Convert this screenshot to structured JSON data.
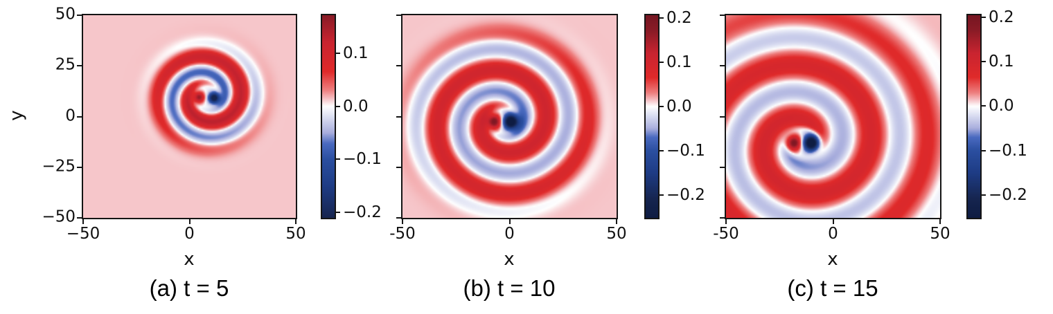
{
  "figure": {
    "background": "#ffffff",
    "spine_color": "#141414",
    "text_color": "#111111"
  },
  "colormap": {
    "name": "diverging-red-white-blue",
    "stops": [
      [
        -0.26,
        "#0c1a40"
      ],
      [
        -0.21,
        "#16254f"
      ],
      [
        -0.15,
        "#1e3c85"
      ],
      [
        -0.1,
        "#2b4fa0"
      ],
      [
        -0.07,
        "#4a6ac0"
      ],
      [
        -0.05,
        "#a9aedd"
      ],
      [
        -0.02,
        "#dcdff2"
      ],
      [
        0.0,
        "#ffffff"
      ],
      [
        0.013,
        "#f6c6ca"
      ],
      [
        0.03,
        "#ee8080"
      ],
      [
        0.065,
        "#e02a2a"
      ],
      [
        0.12,
        "#c92430"
      ],
      [
        0.17,
        "#8a1b26"
      ],
      [
        0.22,
        "#6e1420"
      ]
    ]
  },
  "chart_data": [
    {
      "type": "heatmap",
      "caption": "(a) t = 5",
      "time": 5,
      "xlabel": "x",
      "ylabel": "y",
      "xlim": [
        -50,
        50
      ],
      "ylim": [
        -50,
        50
      ],
      "grid": false,
      "xticks": [
        {
          "value": -50,
          "label": "−50"
        },
        {
          "value": 0,
          "label": "0"
        },
        {
          "value": 50,
          "label": "50"
        }
      ],
      "yticks": [
        {
          "value": 50,
          "label": "50"
        },
        {
          "value": 25,
          "label": "25"
        },
        {
          "value": 0,
          "label": "0"
        },
        {
          "value": -25,
          "label": "−25"
        },
        {
          "value": -50,
          "label": "−50"
        }
      ],
      "colorbar": {
        "vmin": -0.21,
        "vmax": 0.171,
        "ticks": [
          {
            "value": 0.1,
            "label": "0.1"
          },
          {
            "value": 0.0,
            "label": "0.0"
          },
          {
            "value": -0.1,
            "label": "−0.1"
          },
          {
            "value": -0.2,
            "label": "−0.2"
          }
        ]
      },
      "field": {
        "background_value": 0.013,
        "spiral_center": [
          8,
          9.7
        ],
        "wavenumber": 0.39,
        "phase": 0.0,
        "amplitude": 0.115,
        "wave_bias": 0.16,
        "ramp_start": 4.5,
        "ramp_width": 5,
        "front_radius": 25,
        "front_width": 4.5,
        "halo_amp": -0.025,
        "halo_sigma": 6,
        "dipole": {
          "red_pos": [
            4.6,
            9.5
          ],
          "red_amp": 0.17,
          "blue_pos": [
            11.6,
            9.2
          ],
          "blue_amp": -0.24,
          "sigma": 1.9
        }
      }
    },
    {
      "type": "heatmap",
      "caption": "(b) t = 10",
      "time": 10,
      "xlabel": "x",
      "ylabel": "",
      "xlim": [
        -50,
        50
      ],
      "ylim": [
        -50,
        50
      ],
      "grid": false,
      "xticks": [
        {
          "value": -50,
          "label": "-50"
        },
        {
          "value": 0,
          "label": "0"
        },
        {
          "value": 50,
          "label": "50"
        }
      ],
      "yticks": [
        {
          "value": 50,
          "label": ""
        },
        {
          "value": 25,
          "label": ""
        },
        {
          "value": 0,
          "label": ""
        },
        {
          "value": -25,
          "label": ""
        },
        {
          "value": -50,
          "label": ""
        }
      ],
      "colorbar": {
        "vmin": -0.252,
        "vmax": 0.206,
        "ticks": [
          {
            "value": 0.2,
            "label": "0.2"
          },
          {
            "value": 0.1,
            "label": "0.1"
          },
          {
            "value": 0.0,
            "label": "0.0"
          },
          {
            "value": -0.1,
            "label": "−0.1"
          },
          {
            "value": -0.2,
            "label": "−0.2"
          }
        ]
      },
      "field": {
        "background_value": 0.013,
        "spiral_center": [
          -3.2,
          -2.5
        ],
        "wavenumber": 0.3,
        "phase": -0.25,
        "amplitude": 0.095,
        "wave_bias": 0.18,
        "ramp_start": 5,
        "ramp_width": 5,
        "front_radius": 44,
        "front_width": 6,
        "halo_amp": -0.03,
        "halo_sigma": 8,
        "dipole": {
          "red_pos": [
            -7,
            -2.5
          ],
          "red_amp": 0.21,
          "blue_pos": [
            0.6,
            -2.5
          ],
          "blue_amp": -0.3,
          "sigma": 2.6
        }
      }
    },
    {
      "type": "heatmap",
      "caption": "(c) t = 15",
      "time": 15,
      "xlabel": "x",
      "ylabel": "",
      "xlim": [
        -50,
        50
      ],
      "ylim": [
        -50,
        50
      ],
      "grid": false,
      "xticks": [
        {
          "value": -50,
          "label": "-50"
        },
        {
          "value": 0,
          "label": "0"
        },
        {
          "value": 50,
          "label": "50"
        }
      ],
      "yticks": [
        {
          "value": 50,
          "label": ""
        },
        {
          "value": 25,
          "label": ""
        },
        {
          "value": 0,
          "label": ""
        },
        {
          "value": -25,
          "label": ""
        },
        {
          "value": -50,
          "label": ""
        }
      ],
      "colorbar": {
        "vmin": -0.252,
        "vmax": 0.205,
        "ticks": [
          {
            "value": 0.2,
            "label": "0.2"
          },
          {
            "value": 0.1,
            "label": "0.1"
          },
          {
            "value": 0.0,
            "label": "0.0"
          },
          {
            "value": -0.1,
            "label": "−0.1"
          },
          {
            "value": -0.2,
            "label": "−0.2"
          }
        ]
      },
      "field": {
        "background_value": 0.013,
        "spiral_center": [
          -14,
          -13
        ],
        "wavenumber": 0.233,
        "phase": 1.1,
        "amplitude": 0.085,
        "wave_bias": 0.2,
        "ramp_start": 5,
        "ramp_width": 5,
        "front_radius": 70,
        "front_width": 12,
        "halo_amp": -0.03,
        "halo_sigma": 8,
        "dipole": {
          "red_pos": [
            -18,
            -13
          ],
          "red_amp": 0.21,
          "blue_pos": [
            -10.3,
            -13
          ],
          "blue_amp": -0.3,
          "sigma": 2.7
        }
      }
    }
  ]
}
